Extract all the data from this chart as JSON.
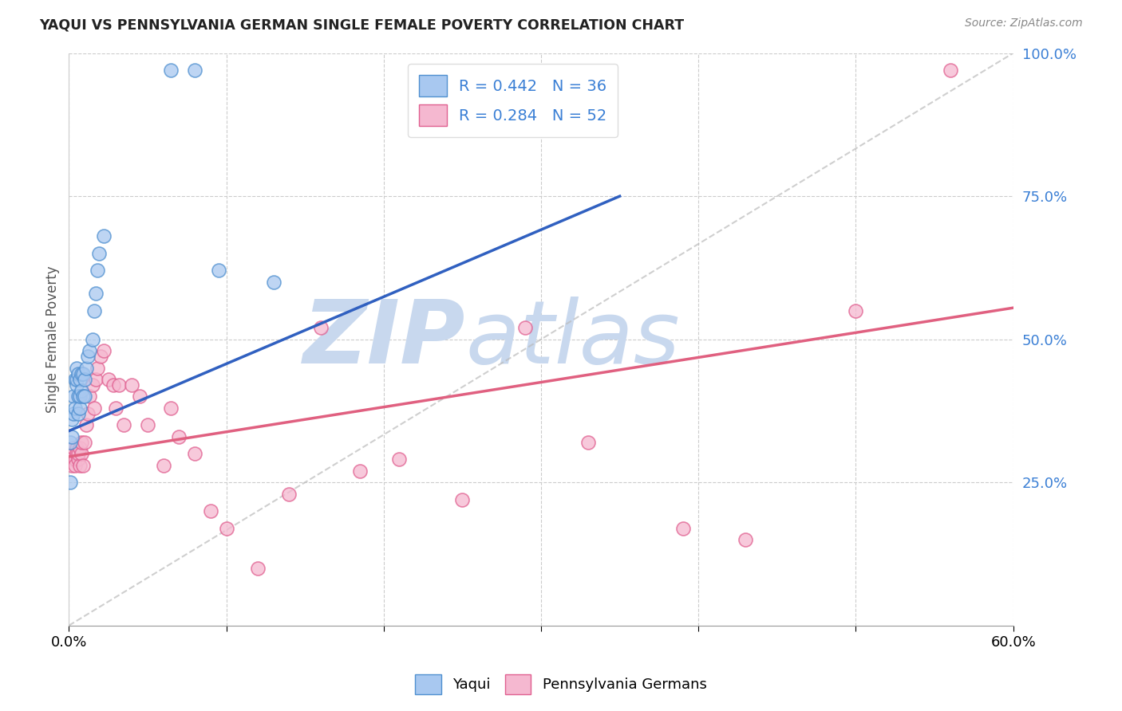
{
  "title": "YAQUI VS PENNSYLVANIA GERMAN SINGLE FEMALE POVERTY CORRELATION CHART",
  "source": "Source: ZipAtlas.com",
  "ylabel": "Single Female Poverty",
  "x_min": 0.0,
  "x_max": 0.6,
  "y_min": 0.0,
  "y_max": 1.0,
  "x_tick_positions": [
    0.0,
    0.6
  ],
  "x_tick_labels": [
    "0.0%",
    "60.0%"
  ],
  "y_ticks": [
    0.25,
    0.5,
    0.75,
    1.0
  ],
  "y_tick_labels": [
    "25.0%",
    "50.0%",
    "75.0%",
    "100.0%"
  ],
  "yaqui_R": 0.442,
  "yaqui_N": 36,
  "penn_R": 0.284,
  "penn_N": 52,
  "yaqui_color": "#A8C8F0",
  "penn_color": "#F5B8D0",
  "yaqui_edge_color": "#5090D0",
  "penn_edge_color": "#E06090",
  "yaqui_line_color": "#3060C0",
  "penn_line_color": "#E06080",
  "ref_line_color": "#BBBBBB",
  "watermark": "ZIPatlas",
  "watermark_color": "#C8D8EE",
  "background_color": "#FFFFFF",
  "grid_color": "#CCCCCC",
  "yaqui_x": [
    0.001,
    0.001,
    0.002,
    0.002,
    0.003,
    0.003,
    0.004,
    0.004,
    0.005,
    0.005,
    0.005,
    0.006,
    0.006,
    0.006,
    0.007,
    0.007,
    0.007,
    0.008,
    0.008,
    0.009,
    0.009,
    0.01,
    0.01,
    0.011,
    0.012,
    0.013,
    0.015,
    0.016,
    0.017,
    0.018,
    0.019,
    0.022,
    0.065,
    0.08,
    0.095,
    0.13
  ],
  "yaqui_y": [
    0.25,
    0.32,
    0.33,
    0.36,
    0.37,
    0.4,
    0.38,
    0.43,
    0.42,
    0.43,
    0.45,
    0.37,
    0.4,
    0.44,
    0.38,
    0.4,
    0.43,
    0.41,
    0.44,
    0.4,
    0.44,
    0.4,
    0.43,
    0.45,
    0.47,
    0.48,
    0.5,
    0.55,
    0.58,
    0.62,
    0.65,
    0.68,
    0.97,
    0.97,
    0.62,
    0.6
  ],
  "penn_x": [
    0.001,
    0.002,
    0.002,
    0.003,
    0.003,
    0.004,
    0.004,
    0.005,
    0.005,
    0.006,
    0.006,
    0.007,
    0.007,
    0.008,
    0.008,
    0.009,
    0.01,
    0.011,
    0.012,
    0.013,
    0.015,
    0.016,
    0.017,
    0.018,
    0.02,
    0.022,
    0.025,
    0.028,
    0.03,
    0.032,
    0.035,
    0.04,
    0.045,
    0.05,
    0.06,
    0.065,
    0.07,
    0.08,
    0.09,
    0.1,
    0.12,
    0.14,
    0.16,
    0.185,
    0.21,
    0.25,
    0.29,
    0.33,
    0.39,
    0.43,
    0.5,
    0.56
  ],
  "penn_y": [
    0.29,
    0.3,
    0.28,
    0.3,
    0.31,
    0.29,
    0.28,
    0.31,
    0.3,
    0.29,
    0.3,
    0.31,
    0.28,
    0.3,
    0.32,
    0.28,
    0.32,
    0.35,
    0.37,
    0.4,
    0.42,
    0.38,
    0.43,
    0.45,
    0.47,
    0.48,
    0.43,
    0.42,
    0.38,
    0.42,
    0.35,
    0.42,
    0.4,
    0.35,
    0.28,
    0.38,
    0.33,
    0.3,
    0.2,
    0.17,
    0.1,
    0.23,
    0.52,
    0.27,
    0.29,
    0.22,
    0.52,
    0.32,
    0.17,
    0.15,
    0.55,
    0.97
  ],
  "yaqui_line_x0": 0.0,
  "yaqui_line_y0": 0.34,
  "yaqui_line_x1": 0.35,
  "yaqui_line_y1": 0.75,
  "penn_line_x0": 0.0,
  "penn_line_y0": 0.295,
  "penn_line_x1": 0.6,
  "penn_line_y1": 0.555
}
